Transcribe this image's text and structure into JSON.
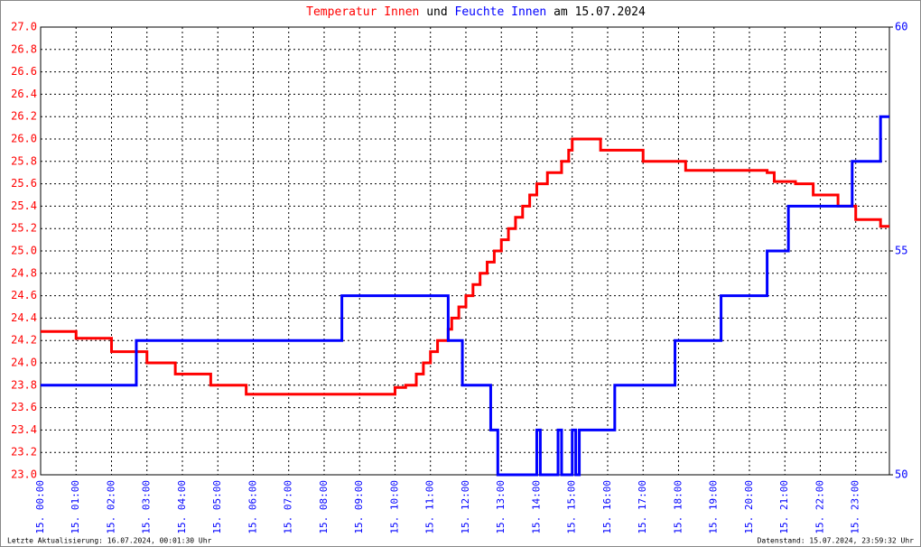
{
  "chart_data": {
    "type": "line",
    "step": true,
    "grid": true,
    "title_joiner": "und",
    "title_suffix": "am 15.07.2024",
    "footer_left": "Letzte Aktualisierung: 16.07.2024, 00:01:30 Uhr",
    "footer_right": "Datenstand: 15.07.2024, 23:59:32 Uhr",
    "xlim": [
      0,
      23.95
    ],
    "xticks": [
      {
        "value": 0,
        "label": "15. 00:00"
      },
      {
        "value": 1,
        "label": "15. 01:00"
      },
      {
        "value": 2,
        "label": "15. 02:00"
      },
      {
        "value": 3,
        "label": "15. 03:00"
      },
      {
        "value": 4,
        "label": "15. 04:00"
      },
      {
        "value": 5,
        "label": "15. 05:00"
      },
      {
        "value": 6,
        "label": "15. 06:00"
      },
      {
        "value": 7,
        "label": "15. 07:00"
      },
      {
        "value": 8,
        "label": "15. 08:00"
      },
      {
        "value": 9,
        "label": "15. 09:00"
      },
      {
        "value": 10,
        "label": "15. 10:00"
      },
      {
        "value": 11,
        "label": "15. 11:00"
      },
      {
        "value": 12,
        "label": "15. 12:00"
      },
      {
        "value": 13,
        "label": "15. 13:00"
      },
      {
        "value": 14,
        "label": "15. 14:00"
      },
      {
        "value": 15,
        "label": "15. 15:00"
      },
      {
        "value": 16,
        "label": "15. 16:00"
      },
      {
        "value": 17,
        "label": "15. 17:00"
      },
      {
        "value": 18,
        "label": "15. 18:00"
      },
      {
        "value": 19,
        "label": "15. 19:00"
      },
      {
        "value": 20,
        "label": "15. 20:00"
      },
      {
        "value": 21,
        "label": "15. 21:00"
      },
      {
        "value": 22,
        "label": "15. 22:00"
      },
      {
        "value": 23,
        "label": "15. 23:00"
      }
    ],
    "ylim": [
      23,
      27
    ],
    "yticks": [
      {
        "value": 23,
        "label": "23.0"
      },
      23.2,
      23.4,
      23.6,
      23.8,
      {
        "value": 24,
        "label": "24.0"
      },
      24.2,
      24.4,
      24.6,
      24.8,
      {
        "value": 25,
        "label": "25.0"
      },
      25.2,
      25.4,
      25.6,
      25.8,
      {
        "value": 26,
        "label": "26.0"
      },
      26.2,
      26.4,
      26.6,
      26.8,
      {
        "value": 27,
        "label": "27.0"
      }
    ],
    "y2lim": [
      50,
      60
    ],
    "y2ticks": [
      50,
      55,
      60
    ],
    "series": [
      {
        "name": "Temperatur Innen",
        "color": "#ff0000",
        "x": [
          0,
          1,
          2,
          3,
          3.8,
          4.8,
          5.8,
          10,
          10.3,
          10.6,
          10.8,
          11,
          11.2,
          11.5,
          11.6,
          11.8,
          12,
          12.2,
          12.4,
          12.6,
          12.8,
          13,
          13.2,
          13.4,
          13.6,
          13.8,
          14,
          14.3,
          14.7,
          14.9,
          15,
          15.8,
          17,
          18.2,
          20.5,
          20.7,
          21.3,
          21.8,
          22.5,
          23,
          23.7,
          23.95
        ],
        "values": [
          24.28,
          24.22,
          24.1,
          24,
          23.9,
          23.8,
          23.72,
          23.78,
          23.8,
          23.9,
          24,
          24.1,
          24.2,
          24.3,
          24.4,
          24.5,
          24.6,
          24.7,
          24.8,
          24.9,
          25,
          25.1,
          25.2,
          25.3,
          25.4,
          25.5,
          25.6,
          25.7,
          25.8,
          25.9,
          26,
          25.9,
          25.8,
          25.72,
          25.7,
          25.62,
          25.6,
          25.5,
          25.4,
          25.28,
          25.22,
          25.22
        ]
      },
      {
        "name": "Feuchte Innen",
        "color": "#0000ff",
        "axis": "y2",
        "x": [
          0,
          2.7,
          8.5,
          11.5,
          11.9,
          12.7,
          12.9,
          14,
          14.1,
          14.6,
          14.7,
          15,
          15.1,
          15.2,
          16.2,
          17.9,
          19.2,
          20.5,
          21.1,
          22.9,
          23.7,
          23.95
        ],
        "values": [
          52,
          53,
          54,
          53,
          52,
          51,
          50,
          51,
          50,
          51,
          50,
          51,
          50,
          51,
          52,
          53,
          54,
          55,
          56,
          57,
          58,
          58
        ]
      }
    ]
  }
}
